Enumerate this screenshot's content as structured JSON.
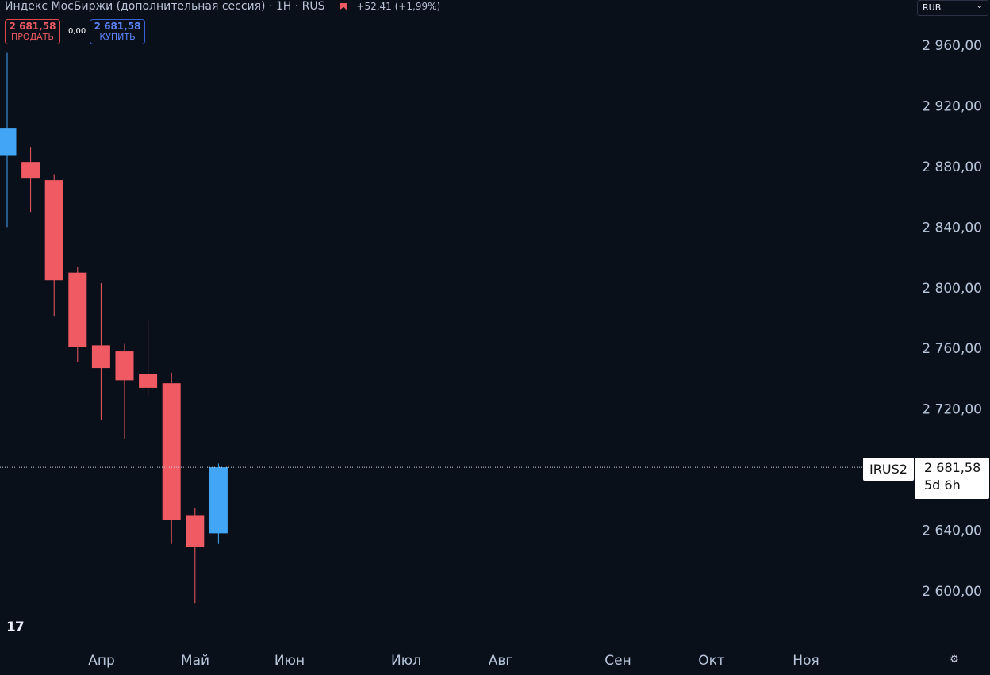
{
  "header": {
    "title": "Индекс МосБиржи (дополнительная сессия) · 1Н · RUS",
    "change": "+52,41 (+1,99%)"
  },
  "trade": {
    "sell_price": "2 681,58",
    "sell_label": "ПРОДАТЬ",
    "spread": "0,00",
    "buy_price": "2 681,58",
    "buy_label": "КУПИТЬ"
  },
  "currency": {
    "value": "RUB"
  },
  "last_price": {
    "symbol": "IRUS2",
    "price": "2 681,58",
    "countdown": "5d 6h"
  },
  "colors": {
    "background": "#0a101a",
    "down": "#f05a63",
    "up": "#42a5f5",
    "axis_text": "#b8c6dc"
  },
  "icons": {
    "logo": "tradingview-logo",
    "settings": "settings-icon"
  },
  "chart_data": {
    "type": "candlestick",
    "y_ticks": [
      "2 960,00",
      "2 920,00",
      "2 880,00",
      "2 840,00",
      "2 800,00",
      "2 760,00",
      "2 720,00",
      "2 640,00",
      "2 600,00"
    ],
    "y_tick_values": [
      2960,
      2920,
      2880,
      2840,
      2800,
      2760,
      2720,
      2640,
      2600
    ],
    "x_tick_labels": [
      "Апр",
      "Май",
      "Июн",
      "Июл",
      "Авг",
      "Сен",
      "Окт",
      "Ноя"
    ],
    "last_value": 2681.58,
    "candles": [
      {
        "o": 2887,
        "h": 2955,
        "l": 2840,
        "c": 2905
      },
      {
        "o": 2883,
        "h": 2893,
        "l": 2850,
        "c": 2872
      },
      {
        "o": 2871,
        "h": 2875,
        "l": 2781,
        "c": 2805
      },
      {
        "o": 2810,
        "h": 2814,
        "l": 2751,
        "c": 2761
      },
      {
        "o": 2762,
        "h": 2803,
        "l": 2713,
        "c": 2747
      },
      {
        "o": 2758,
        "h": 2763,
        "l": 2700,
        "c": 2739
      },
      {
        "o": 2743,
        "h": 2778,
        "l": 2729,
        "c": 2734
      },
      {
        "o": 2737,
        "h": 2744,
        "l": 2631,
        "c": 2647
      },
      {
        "o": 2650,
        "h": 2655,
        "l": 2592,
        "c": 2629
      },
      {
        "o": 2638,
        "h": 2684,
        "l": 2631,
        "c": 2681.58
      }
    ]
  }
}
